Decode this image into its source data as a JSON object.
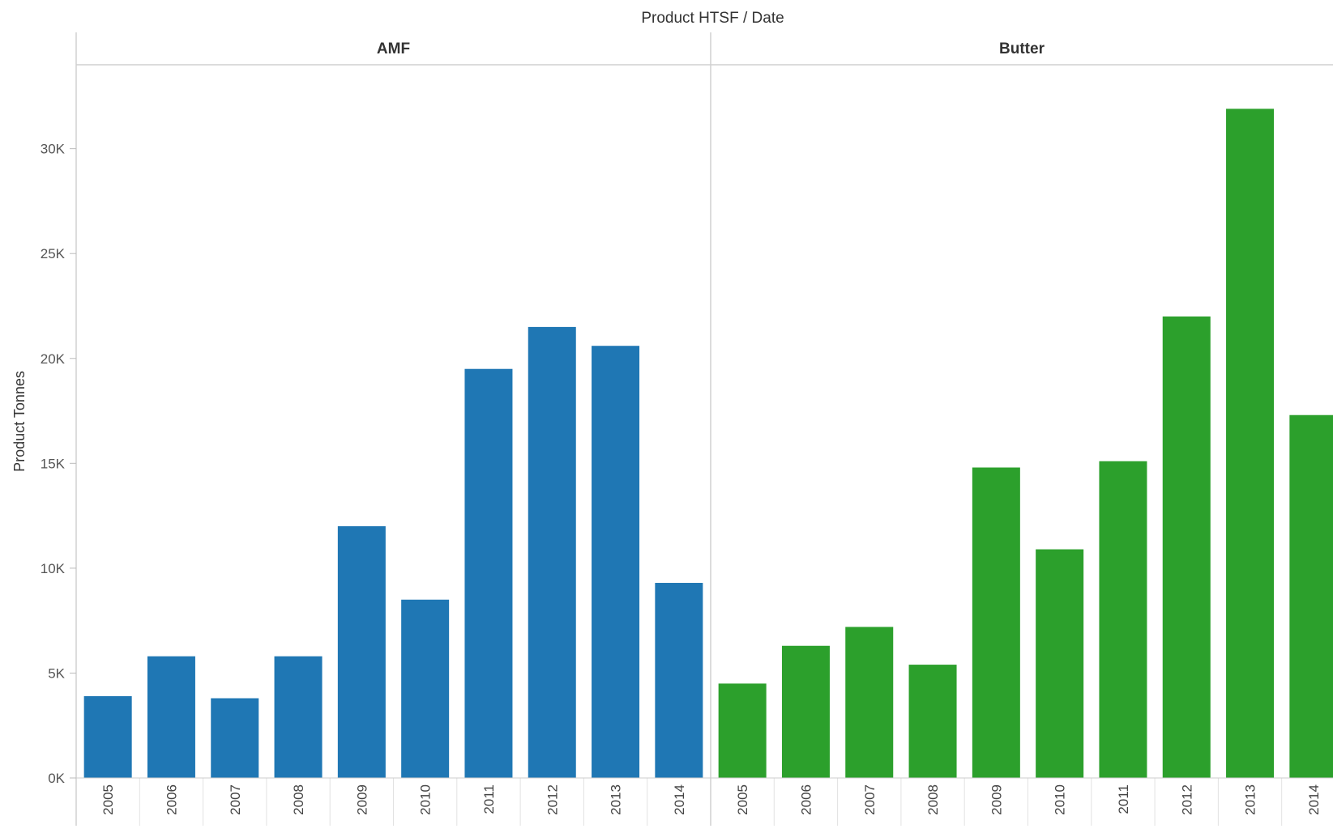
{
  "chart_data": {
    "type": "bar",
    "title": "Product HTSF  /  Date",
    "ylabel": "Product Tonnes",
    "xlabel": "",
    "ylim": [
      0,
      34000
    ],
    "yticks": [
      0,
      5000,
      10000,
      15000,
      20000,
      25000,
      30000
    ],
    "ytick_labels": [
      "0K",
      "5K",
      "10K",
      "15K",
      "20K",
      "25K",
      "30K"
    ],
    "grid": false,
    "legend": "none",
    "categories": [
      "2005",
      "2006",
      "2007",
      "2008",
      "2009",
      "2010",
      "2011",
      "2012",
      "2013",
      "2014"
    ],
    "panels": [
      {
        "name": "AMF",
        "color": "#1f77b4",
        "values": [
          3900,
          5800,
          3800,
          5800,
          12000,
          8500,
          19500,
          21500,
          20600,
          9300
        ]
      },
      {
        "name": "Butter",
        "color": "#2ca02c",
        "values": [
          4500,
          6300,
          7200,
          5400,
          14800,
          10900,
          15100,
          22000,
          31900,
          17300
        ]
      }
    ]
  }
}
